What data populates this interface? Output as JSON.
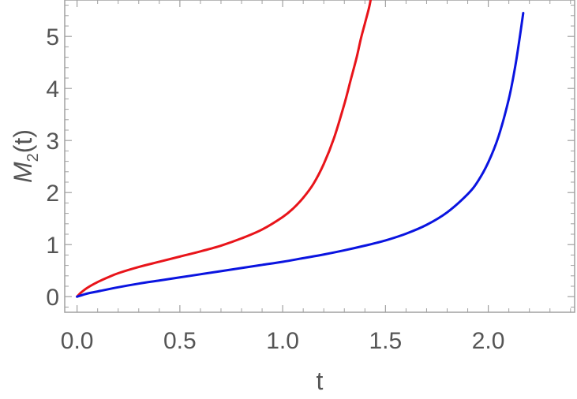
{
  "chart_data": {
    "type": "line",
    "title": "",
    "xlabel": "t",
    "ylabel": {
      "base": "M",
      "sub": "2",
      "suffix": "(t)"
    },
    "xlim": [
      -0.06,
      2.42
    ],
    "ylim": [
      -0.3,
      5.7
    ],
    "x_ticks": [
      0.0,
      0.5,
      1.0,
      1.5,
      2.0
    ],
    "x_tick_labels": [
      "0.0",
      "0.5",
      "1.0",
      "1.5",
      "2.0"
    ],
    "y_ticks": [
      0,
      1,
      2,
      3,
      4,
      5
    ],
    "y_tick_labels": [
      "0",
      "1",
      "2",
      "3",
      "4",
      "5"
    ],
    "grid": false,
    "frame": true,
    "series": [
      {
        "color": "#e8141a",
        "x": [
          0.0,
          0.02,
          0.05,
          0.1,
          0.15,
          0.2,
          0.3,
          0.4,
          0.5,
          0.6,
          0.7,
          0.8,
          0.9,
          1.0,
          1.05,
          1.1,
          1.15,
          1.2,
          1.25,
          1.3,
          1.33,
          1.36,
          1.38,
          1.4,
          1.42,
          1.43
        ],
        "y": [
          0.0,
          0.08,
          0.17,
          0.28,
          0.37,
          0.45,
          0.57,
          0.67,
          0.77,
          0.87,
          0.98,
          1.12,
          1.29,
          1.53,
          1.69,
          1.9,
          2.17,
          2.55,
          3.05,
          3.7,
          4.15,
          4.6,
          4.95,
          5.25,
          5.55,
          5.75
        ]
      },
      {
        "color": "#0a14e0",
        "x": [
          0.0,
          0.05,
          0.1,
          0.2,
          0.3,
          0.4,
          0.5,
          0.6,
          0.7,
          0.8,
          0.9,
          1.0,
          1.1,
          1.2,
          1.3,
          1.4,
          1.5,
          1.6,
          1.7,
          1.8,
          1.9,
          1.95,
          2.0,
          2.05,
          2.1,
          2.13,
          2.15,
          2.17
        ],
        "y": [
          0.0,
          0.06,
          0.1,
          0.18,
          0.25,
          0.31,
          0.37,
          0.43,
          0.49,
          0.55,
          0.61,
          0.67,
          0.74,
          0.81,
          0.89,
          0.98,
          1.08,
          1.21,
          1.38,
          1.62,
          1.97,
          2.22,
          2.58,
          3.08,
          3.8,
          4.4,
          4.9,
          5.45
        ]
      }
    ]
  }
}
